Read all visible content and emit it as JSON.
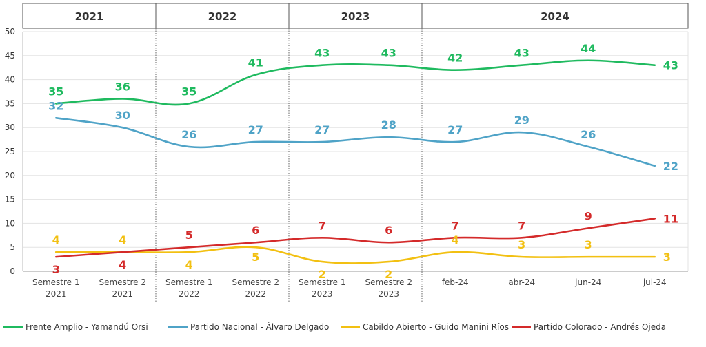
{
  "chart_data": {
    "type": "line",
    "categories": [
      [
        "Semestre 1",
        "2021"
      ],
      [
        "Semestre 2",
        "2021"
      ],
      [
        "Semestre 1",
        "2022"
      ],
      [
        "Semestre 2",
        "2022"
      ],
      [
        "Semestre 1",
        "2023"
      ],
      [
        "Semestre 2",
        "2023"
      ],
      [
        "feb-24"
      ],
      [
        "abr-24"
      ],
      [
        "jun-24"
      ],
      [
        "jul-24"
      ]
    ],
    "year_groups": [
      {
        "label": "2021",
        "from": 0,
        "to": 1
      },
      {
        "label": "2022",
        "from": 2,
        "to": 3
      },
      {
        "label": "2023",
        "from": 4,
        "to": 5
      },
      {
        "label": "2024",
        "from": 6,
        "to": 9
      }
    ],
    "ylim": [
      0,
      50
    ],
    "yticks": [
      0,
      5,
      10,
      15,
      20,
      25,
      30,
      35,
      40,
      45,
      50
    ],
    "grid": true,
    "legend_position": "bottom",
    "series": [
      {
        "name": "Frente Amplio - Yamandú Orsi",
        "color": "#1fba5f",
        "values": [
          35,
          36,
          35,
          41,
          43,
          43,
          42,
          43,
          44,
          43
        ],
        "label_pos": "above"
      },
      {
        "name": "Partido Nacional - Álvaro Delgado",
        "color": "#4fa3c7",
        "values": [
          32,
          30,
          26,
          27,
          27,
          28,
          27,
          29,
          26,
          22
        ],
        "label_pos": "above"
      },
      {
        "name": "Cabildo Abierto - Guido Manini Ríos",
        "color": "#f2c012",
        "values": [
          4,
          4,
          4,
          5,
          2,
          2,
          4,
          3,
          3,
          3
        ],
        "label_pos": "mixed"
      },
      {
        "name": "Partido Colorado - Andrés Ojeda",
        "color": "#d42a2a",
        "values": [
          3,
          4,
          5,
          6,
          7,
          6,
          7,
          7,
          9,
          11
        ],
        "label_pos": "mixed"
      }
    ]
  }
}
